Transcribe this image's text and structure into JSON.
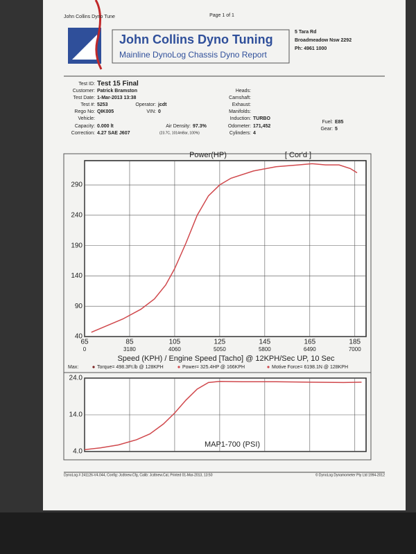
{
  "header": {
    "running_title": "John Collins Dyno Tune",
    "page": "Page 1 of 1",
    "title": "John Collins Dyno Tuning",
    "subtitle": "Mainline DynoLog Chassis Dyno Report",
    "address": [
      "5 Tara Rd",
      "Broadmeadow Nsw 2292",
      "Ph: 4961 1000"
    ]
  },
  "test_info": [
    {
      "label": "Test ID:",
      "value": "Test 15 Final"
    },
    {
      "label": "Customer:",
      "value": "Patrick Bramston"
    },
    {
      "label": "Test Date:",
      "value": "1-Mar-2013 13:38"
    },
    {
      "label": "Test #:",
      "value": "5253"
    },
    {
      "label": "Rego No:",
      "value": "QIK005"
    },
    {
      "label": "Vehicle:"
    },
    {
      "label": "Capacity:",
      "value": "0.000 lt"
    },
    {
      "label": "Correction:",
      "value": "4.27 SAE J607"
    },
    {
      "label": "Operator:",
      "value": "jcdt"
    },
    {
      "label": "VIN:",
      "value": "0"
    },
    {
      "label": "Air Density:",
      "value": "97.3%"
    },
    {
      "label": "(23.7C, 1014mBar, 100%)"
    },
    {
      "label": "Heads:"
    },
    {
      "label": "Camshaft:"
    },
    {
      "label": "Exhaust:"
    },
    {
      "label": "Manifolds:"
    },
    {
      "label": "Induction:",
      "value": "TURBO"
    },
    {
      "label": "Odometer:",
      "value": "171,452"
    },
    {
      "label": "Cylinders:",
      "value": "4"
    },
    {
      "label": "Fuel:",
      "value": "E85"
    },
    {
      "label": "Gear:",
      "value": "5"
    }
  ],
  "chart_data": [
    {
      "type": "line",
      "title": "Power(HP)",
      "annotation": "[ Cor'd ]",
      "x": [
        68,
        75,
        82,
        90,
        96,
        101,
        105,
        110,
        115,
        120,
        125,
        130,
        140,
        150,
        160,
        166,
        172,
        178,
        183,
        186
      ],
      "series": [
        {
          "color": "#d0484c",
          "values": [
            47,
            58,
            69,
            85,
            102,
            125,
            152,
            194,
            240,
            272,
            290,
            301,
            313,
            320,
            323,
            325,
            323,
            323,
            317,
            310
          ]
        }
      ],
      "xlim": [
        65,
        190
      ],
      "xticks": [
        65,
        85,
        105,
        125,
        145,
        165,
        185
      ],
      "x_secondary_labels": [
        0,
        3180,
        4060,
        5050,
        5800,
        6490,
        7000
      ],
      "ylim": [
        40,
        330
      ],
      "yticks": [
        40,
        90,
        140,
        190,
        240,
        290
      ],
      "grid": true,
      "xlabel": "Speed (KPH) / Engine Speed [Tacho] @ 12KPH/Sec UP, 10 Sec",
      "max_label": "Max:",
      "max_legend": [
        {
          "text": "Torque= 498.3Ft.lb @ 128KPH",
          "color": "#7a2020"
        },
        {
          "text": "Power= 325.4HP @ 166KPH",
          "color": "#d0484c"
        },
        {
          "text": "Motive Force= 6198.1N @ 128KPH",
          "color": "#d0484c"
        }
      ]
    },
    {
      "type": "line",
      "title": "MAP1-700 (PSI)",
      "x": [
        65,
        72,
        80,
        88,
        94,
        100,
        105,
        110,
        115,
        120,
        125,
        135,
        150,
        165,
        180,
        188
      ],
      "series": [
        {
          "color": "#d0484c",
          "values": [
            4.5,
            5,
            5.8,
            7.2,
            8.8,
            11.5,
            14.5,
            18,
            21,
            22.8,
            23.1,
            23,
            23,
            22.9,
            22.8,
            22.9
          ]
        }
      ],
      "xlim": [
        65,
        190
      ],
      "xticks": [
        65,
        85,
        105,
        125,
        145,
        165,
        185
      ],
      "ylim": [
        4,
        24
      ],
      "yticks": [
        {
          "value": 4,
          "label": "4.0"
        },
        {
          "value": 14,
          "label": "14.0"
        },
        {
          "value": 24,
          "label": "24.0"
        }
      ],
      "grid": true
    }
  ],
  "footer": {
    "left": "DynoLog # 241126-V4.044, Config: Jcdtnew.Cfg, Calib: Jcdtnew.Cal, Printed 01-Mar-2013, 13:50",
    "right": "© DynoLog Dynamometer Pty Ltd 1994-2012"
  }
}
